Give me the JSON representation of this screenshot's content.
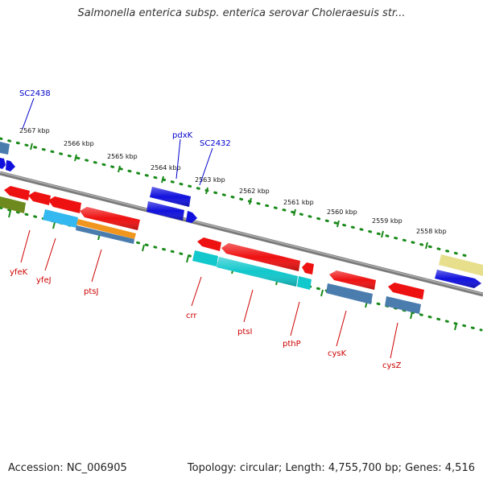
{
  "title": "Salmonella enterica subsp. enterica serovar Choleraesuis str...",
  "footer": {
    "accession": "Accession: NC_006905",
    "topology": "Topology: circular; Length: 4,755,700 bp; Genes: 4,516"
  },
  "colors": {
    "backbone": "#7a7a7a",
    "tick": "#1a8a1a",
    "forward_label": "#0000cc",
    "reverse_label": "#cc0000",
    "red": "#ee1111",
    "blue": "#1111dd",
    "steel": "#4a7cae",
    "cyan": "#11c8cc",
    "sky": "#33b8f0",
    "orange": "#f0961e",
    "olive": "#6e8a1e",
    "khaki": "#e8df8c"
  },
  "ruler": {
    "ticks": [
      {
        "label": "2567 kbp"
      },
      {
        "label": "2566 kbp"
      },
      {
        "label": "2565 kbp"
      },
      {
        "label": "2564 kbp"
      },
      {
        "label": "2563 kbp"
      },
      {
        "label": "2562 kbp"
      },
      {
        "label": "2561 kbp"
      },
      {
        "label": "2560 kbp"
      },
      {
        "label": "2559 kbp"
      },
      {
        "label": "2558 kbp"
      }
    ]
  },
  "gene_labels": {
    "forward": [
      "SC2438",
      "pdxK",
      "SC2432"
    ],
    "reverse": [
      "yfeK",
      "yfeJ",
      "ptsJ",
      "crr",
      "ptsI",
      "pthP",
      "cysK",
      "cysZ"
    ]
  }
}
